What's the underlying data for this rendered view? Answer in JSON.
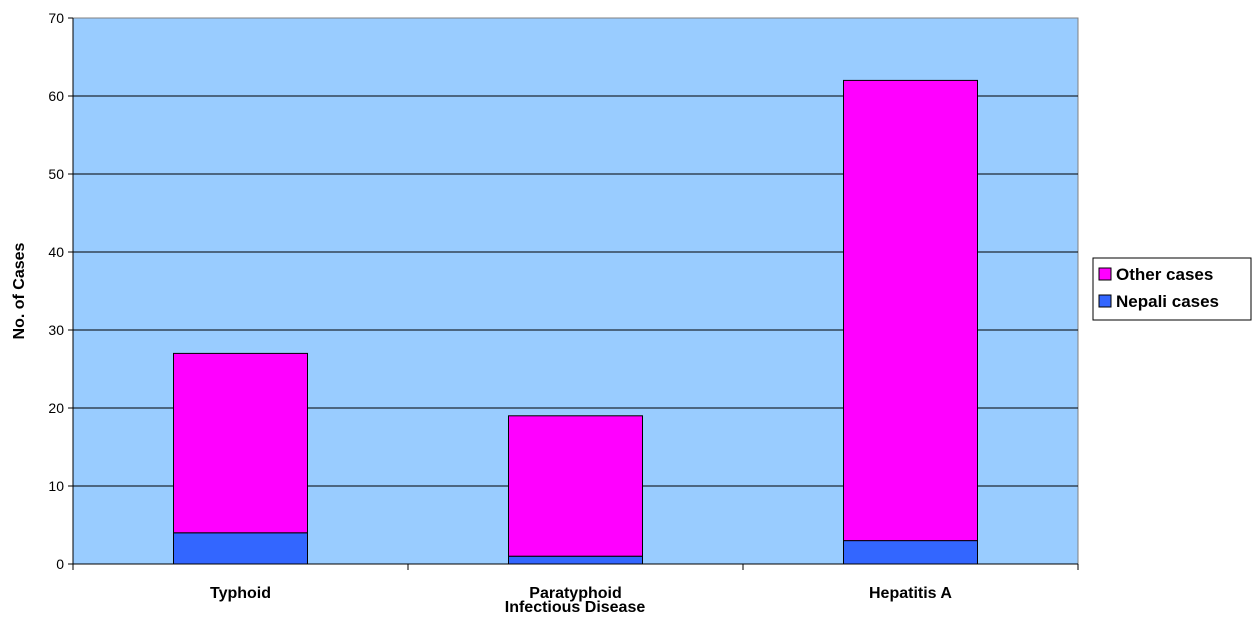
{
  "chart_data": {
    "type": "bar",
    "stacked": true,
    "categories": [
      "Typhoid",
      "Paratyphoid",
      "Hepatitis A"
    ],
    "series": [
      {
        "name": "Nepali cases",
        "values": [
          4,
          1,
          3
        ],
        "color": "#3366ff"
      },
      {
        "name": "Other cases",
        "values": [
          23,
          18,
          59
        ],
        "color": "#ff00ff"
      }
    ],
    "xlabel": "Infectious Disease",
    "ylabel": "No. of Cases",
    "ylim": [
      0,
      70
    ],
    "yticks": [
      0,
      10,
      20,
      30,
      40,
      50,
      60,
      70
    ],
    "grid": true,
    "plot_background": "#99ccff",
    "legend_placement": "right",
    "legend_order": [
      "Other cases",
      "Nepali cases"
    ]
  }
}
